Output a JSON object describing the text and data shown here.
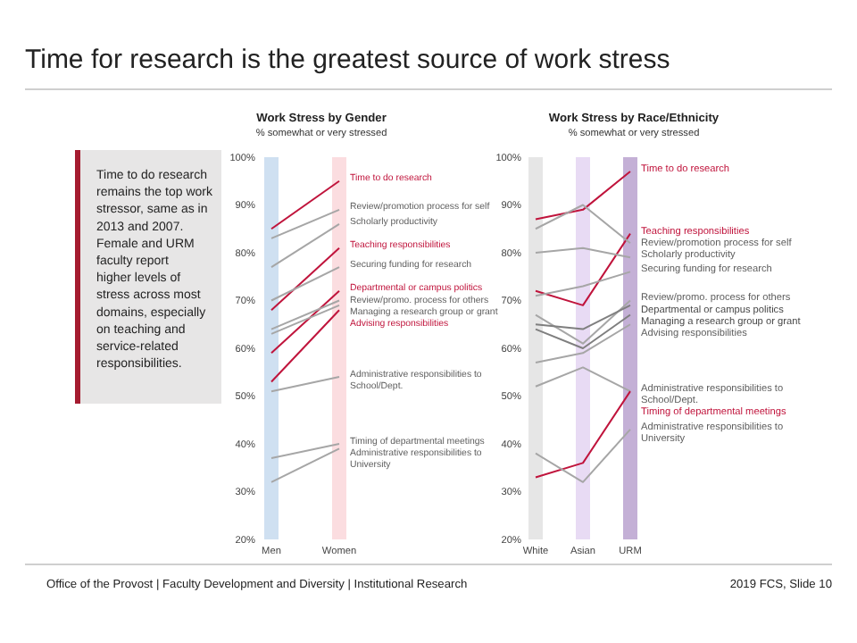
{
  "chart_data": [
    {
      "type": "line",
      "title": "Work Stress by Gender",
      "subtitle": "% somewhat or very stressed",
      "categories": [
        "Men",
        "Women"
      ],
      "bands": [
        {
          "axis": "x",
          "from": "Men",
          "to": "Men",
          "color": "#cfe0f1"
        },
        {
          "axis": "x",
          "from": "Women",
          "to": "Women",
          "color": "#fbdde0"
        }
      ],
      "ylim": [
        20,
        100
      ],
      "yticks": [
        {
          "value": 20,
          "label": "20%"
        },
        {
          "value": 30,
          "label": "30%"
        },
        {
          "value": 40,
          "label": "40%"
        },
        {
          "value": 50,
          "label": "50%"
        },
        {
          "value": 60,
          "label": "60%"
        },
        {
          "value": 70,
          "label": "70%"
        },
        {
          "value": 80,
          "label": "80%"
        },
        {
          "value": 90,
          "label": "90%"
        },
        {
          "value": 100,
          "label": "100%"
        }
      ],
      "series": [
        {
          "name": "Time to do research",
          "color": "#c0143c",
          "values": [
            85,
            95
          ]
        },
        {
          "name": "Review/promotion process for self",
          "color": "#a6a6a6",
          "values": [
            83,
            89
          ]
        },
        {
          "name": "Scholarly productivity",
          "color": "#a6a6a6",
          "values": [
            77,
            86
          ]
        },
        {
          "name": "Teaching responsibilities",
          "color": "#c0143c",
          "values": [
            68,
            81
          ]
        },
        {
          "name": "Securing funding for research",
          "color": "#a6a6a6",
          "values": [
            70,
            77
          ]
        },
        {
          "name": "Departmental or campus politics",
          "color": "#c0143c",
          "values": [
            59,
            72
          ]
        },
        {
          "name": "Review/promo. process for others",
          "color": "#a6a6a6",
          "values": [
            64,
            70
          ]
        },
        {
          "name": "Managing a research group or grant",
          "color": "#a6a6a6",
          "values": [
            63,
            69
          ]
        },
        {
          "name": "Advising responsibilities",
          "color": "#c0143c",
          "values": [
            53,
            68
          ]
        },
        {
          "name": "Administrative responsibilities to School/Dept.",
          "color": "#a6a6a6",
          "values": [
            51,
            54
          ]
        },
        {
          "name": "Timing of departmental meetings",
          "color": "#a6a6a6",
          "values": [
            37,
            40
          ]
        },
        {
          "name": "Administrative responsibilities to University",
          "color": "#a6a6a6",
          "values": [
            32,
            39
          ]
        }
      ]
    },
    {
      "type": "line",
      "title": "Work Stress by Race/Ethnicity",
      "subtitle": "% somewhat or very stressed",
      "categories": [
        "White",
        "Asian",
        "URM"
      ],
      "bands": [
        {
          "axis": "x",
          "from": "White",
          "to": "White",
          "color": "#e6e6e6"
        },
        {
          "axis": "x",
          "from": "Asian",
          "to": "Asian",
          "color": "#e8dbf4"
        },
        {
          "axis": "x",
          "from": "URM",
          "to": "URM",
          "color": "#c4b0d6"
        }
      ],
      "ylim": [
        20,
        100
      ],
      "yticks": [
        {
          "value": 20,
          "label": "20%"
        },
        {
          "value": 30,
          "label": "30%"
        },
        {
          "value": 40,
          "label": "40%"
        },
        {
          "value": 50,
          "label": "50%"
        },
        {
          "value": 60,
          "label": "60%"
        },
        {
          "value": 70,
          "label": "70%"
        },
        {
          "value": 80,
          "label": "80%"
        },
        {
          "value": 90,
          "label": "90%"
        },
        {
          "value": 100,
          "label": "100%"
        }
      ],
      "series": [
        {
          "name": "Time to do research",
          "color": "#c0143c",
          "values": [
            87,
            89,
            97
          ]
        },
        {
          "name": "Teaching responsibilities",
          "color": "#c0143c",
          "values": [
            72,
            69,
            84
          ]
        },
        {
          "name": "Review/promotion process for self",
          "color": "#a6a6a6",
          "values": [
            85,
            90,
            82
          ]
        },
        {
          "name": "Scholarly productivity",
          "color": "#a6a6a6",
          "values": [
            80,
            81,
            79
          ]
        },
        {
          "name": "Securing funding for research",
          "color": "#a6a6a6",
          "values": [
            71,
            73,
            76
          ]
        },
        {
          "name": "Review/promo. process for others",
          "color": "#a6a6a6",
          "values": [
            67,
            61,
            70
          ]
        },
        {
          "name": "Departmental or campus politics",
          "color": "#7f7f7f",
          "values": [
            65,
            64,
            69
          ]
        },
        {
          "name": "Managing a research group or grant",
          "color": "#7f7f7f",
          "values": [
            64,
            60,
            67
          ]
        },
        {
          "name": "Advising responsibilities",
          "color": "#a6a6a6",
          "values": [
            57,
            59,
            65
          ]
        },
        {
          "name": "Administrative responsibilities to School/Dept.",
          "color": "#a6a6a6",
          "values": [
            52,
            56,
            51
          ]
        },
        {
          "name": "Timing of departmental meetings",
          "color": "#c0143c",
          "values": [
            33,
            36,
            51
          ]
        },
        {
          "name": "Administrative responsibilities to University",
          "color": "#a6a6a6",
          "values": [
            38,
            32,
            43
          ]
        }
      ]
    },
    {
      "type": "other",
      "title": "Time for research is the greatest source of work stress",
      "annotations": [
        "Time to do research remains the top work stressor, same as in 2013 and 2007. Female and URM faculty report higher levels of stress across most domains, especially on teaching and service-related responsibilities.",
        "Office of the Provost | Faculty Development and Diversity | Institutional Research",
        "2019 FCS, Slide 10"
      ]
    }
  ]
}
